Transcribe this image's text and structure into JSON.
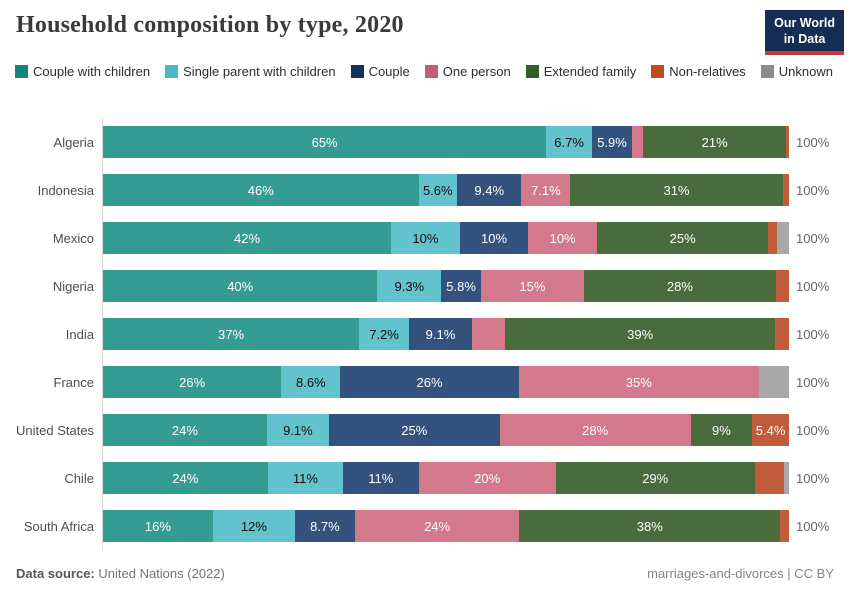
{
  "header": {
    "title": "Household composition by type, 2020",
    "logo": {
      "line1": "Our World",
      "line2": "in Data"
    }
  },
  "legend": [
    {
      "label": "Couple with children",
      "color": "#12867d"
    },
    {
      "label": "Single parent with children",
      "color": "#4db6c3"
    },
    {
      "label": "Couple",
      "color": "#13305f"
    },
    {
      "label": "One person",
      "color": "#c65c76"
    },
    {
      "label": "Extended family",
      "color": "#355e27"
    },
    {
      "label": "Non-relatives",
      "color": "#be4e1f"
    },
    {
      "label": "Unknown",
      "color": "#8a8a8a"
    }
  ],
  "chart_data": {
    "type": "bar",
    "stacked": true,
    "orientation": "horizontal",
    "unit": "%",
    "xlim": [
      0,
      100
    ],
    "grid": false,
    "legend_position": "top",
    "title": "Household composition by type, 2020",
    "categories": [
      "Couple with children",
      "Single parent with children",
      "Couple",
      "One person",
      "Extended family",
      "Non-relatives",
      "Unknown"
    ],
    "palette": [
      "#359c93",
      "#62c2ce",
      "#33527d",
      "#d4798c",
      "#4a6b3c",
      "#c15c3b",
      "#a9a9a9"
    ],
    "label_text_colors": [
      "#ffffff",
      "#111111",
      "#ffffff",
      "#ffffff",
      "#ffffff",
      "#ffffff",
      "#111111"
    ],
    "rows": [
      {
        "country": "Algeria",
        "values": [
          65,
          6.7,
          5.9,
          1.6,
          21,
          0.4,
          0
        ],
        "labels": [
          "65%",
          "6.7%",
          "5.9%",
          "",
          "21%",
          "",
          ""
        ],
        "total_label": "100%"
      },
      {
        "country": "Indonesia",
        "values": [
          46,
          5.6,
          9.4,
          7.1,
          31,
          0.9,
          0
        ],
        "labels": [
          "46%",
          "5.6%",
          "9.4%",
          "7.1%",
          "31%",
          "",
          ""
        ],
        "total_label": "100%"
      },
      {
        "country": "Mexico",
        "values": [
          42,
          10,
          10,
          10,
          25,
          1.3,
          1.7
        ],
        "labels": [
          "42%",
          "10%",
          "10%",
          "10%",
          "25%",
          "",
          ""
        ],
        "total_label": "100%"
      },
      {
        "country": "Nigeria",
        "values": [
          40,
          9.3,
          5.8,
          15,
          28,
          1.9,
          0
        ],
        "labels": [
          "40%",
          "9.3%",
          "5.8%",
          "15%",
          "28%",
          "",
          ""
        ],
        "total_label": "100%"
      },
      {
        "country": "India",
        "values": [
          37,
          7.2,
          9.1,
          4.8,
          39,
          2.0,
          0
        ],
        "labels": [
          "37%",
          "7.2%",
          "9.1%",
          "",
          "39%",
          "",
          ""
        ],
        "total_label": "100%"
      },
      {
        "country": "France",
        "values": [
          26,
          8.6,
          26,
          35,
          0,
          0,
          4.4
        ],
        "labels": [
          "26%",
          "8.6%",
          "26%",
          "35%",
          "",
          "",
          ""
        ],
        "total_label": "100%"
      },
      {
        "country": "United States",
        "values": [
          24,
          9.1,
          25,
          28,
          9,
          5.4,
          0
        ],
        "labels": [
          "24%",
          "9.1%",
          "25%",
          "28%",
          "9%",
          "5.4%",
          ""
        ],
        "total_label": "100%"
      },
      {
        "country": "Chile",
        "values": [
          24,
          11,
          11,
          20,
          29,
          4.2,
          0.8
        ],
        "labels": [
          "24%",
          "11%",
          "11%",
          "20%",
          "29%",
          "",
          ""
        ],
        "total_label": "100%"
      },
      {
        "country": "South Africa",
        "values": [
          16,
          12,
          8.7,
          24,
          38,
          1.3,
          0
        ],
        "labels": [
          "16%",
          "12%",
          "8.7%",
          "24%",
          "38%",
          "",
          ""
        ],
        "total_label": "100%"
      }
    ]
  },
  "footer": {
    "source_label": "Data source:",
    "source_value": "United Nations (2022)",
    "note": "marriages-and-divorces | CC BY"
  }
}
